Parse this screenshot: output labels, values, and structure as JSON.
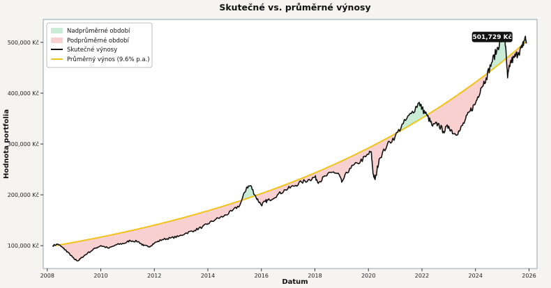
{
  "chart_data": {
    "type": "line",
    "title": "Skutečné vs. průměrné výnosy",
    "xlabel": "Datum",
    "ylabel": "Hodnota portfolia",
    "xlim": [
      2007.85,
      2026.3
    ],
    "ylim": [
      55000,
      545000
    ],
    "x_ticks": [
      2008,
      2010,
      2012,
      2014,
      2016,
      2018,
      2020,
      2022,
      2024,
      2026
    ],
    "x_tick_labels": [
      "2008",
      "2010",
      "2012",
      "2014",
      "2016",
      "2018",
      "2020",
      "2022",
      "2024",
      "2026"
    ],
    "y_ticks": [
      100000,
      200000,
      300000,
      400000,
      500000
    ],
    "y_tick_labels": [
      "100,000 Kč",
      "200,000 Kč",
      "300,000 Kč",
      "400,000 Kč",
      "500,000 Kč"
    ],
    "legend": {
      "position": "top-left",
      "entries": [
        {
          "label": "Nadprůměrné období",
          "kind": "fill",
          "color": "#c8ecd6"
        },
        {
          "label": "Podprůměrné období",
          "kind": "fill",
          "color": "#f9d0d0"
        },
        {
          "label": "Skutečné výnosy",
          "kind": "line",
          "color": "#111111"
        },
        {
          "label": "Průměrný výnos (9.6% p.a.)",
          "kind": "line",
          "color": "#f0c419"
        }
      ]
    },
    "annotation": {
      "text": "501,729 Kč",
      "x": 2025.9,
      "y": 501729
    },
    "series": [
      {
        "name": "Skutečné výnosy",
        "color": "#111111",
        "x": [
          2008.2,
          2008.4,
          2008.6,
          2008.75,
          2008.9,
          2009.0,
          2009.15,
          2009.3,
          2009.5,
          2009.8,
          2010.0,
          2010.3,
          2010.6,
          2010.9,
          2011.1,
          2011.4,
          2011.6,
          2011.8,
          2012.0,
          2012.3,
          2012.6,
          2012.9,
          2013.2,
          2013.5,
          2013.8,
          2014.0,
          2014.3,
          2014.6,
          2014.9,
          2015.2,
          2015.45,
          2015.6,
          2015.8,
          2016.0,
          2016.15,
          2016.3,
          2016.6,
          2016.9,
          2017.2,
          2017.5,
          2017.8,
          2018.0,
          2018.15,
          2018.4,
          2018.7,
          2018.9,
          2019.0,
          2019.3,
          2019.6,
          2019.9,
          2020.1,
          2020.18,
          2020.25,
          2020.4,
          2020.7,
          2021.0,
          2021.3,
          2021.6,
          2021.9,
          2022.0,
          2022.2,
          2022.4,
          2022.6,
          2022.8,
          2023.0,
          2023.2,
          2023.4,
          2023.6,
          2023.8,
          2024.0,
          2024.2,
          2024.4,
          2024.6,
          2024.8,
          2024.95,
          2025.1,
          2025.2,
          2025.3,
          2025.45,
          2025.6,
          2025.75,
          2025.85,
          2025.9
        ],
        "y": [
          100000,
          103000,
          95000,
          88000,
          80000,
          74000,
          70000,
          77000,
          85000,
          95000,
          100000,
          95000,
          102000,
          105000,
          110000,
          108000,
          100000,
          98000,
          105000,
          112000,
          115000,
          118000,
          125000,
          130000,
          137000,
          143000,
          152000,
          158000,
          168000,
          180000,
          215000,
          218000,
          195000,
          180000,
          187000,
          190000,
          200000,
          210000,
          217000,
          225000,
          230000,
          235000,
          225000,
          237000,
          245000,
          240000,
          225000,
          252000,
          262000,
          275000,
          285000,
          240000,
          230000,
          270000,
          298000,
          315000,
          340000,
          360000,
          382000,
          370000,
          355000,
          335000,
          340000,
          325000,
          335000,
          320000,
          325000,
          345000,
          365000,
          380000,
          410000,
          430000,
          460000,
          485000,
          505000,
          508000,
          430000,
          460000,
          470000,
          480000,
          490000,
          510000,
          501729
        ]
      },
      {
        "name": "Průměrný výnos (9.6% p.a.)",
        "color": "#f0c419",
        "start_x": 2008.3,
        "end_x": 2025.9,
        "start_y": 100000,
        "end_y": 501729
      }
    ]
  }
}
